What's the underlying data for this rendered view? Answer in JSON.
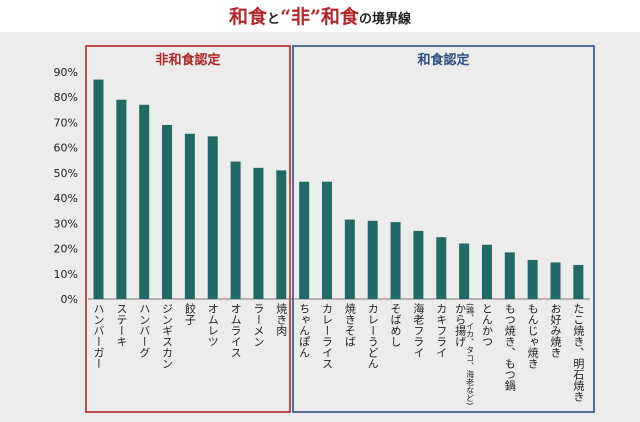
{
  "title": {
    "part1": "和食",
    "part2": "と",
    "part3": "“非”",
    "part4": "和食",
    "part5": "の境界線"
  },
  "groups": [
    {
      "label": "非和食認定",
      "color": "#b3262a",
      "from": 0,
      "to": 7
    },
    {
      "label": "和食認定",
      "color": "#2f4f7f",
      "from": 8,
      "to": 20
    }
  ],
  "colors": {
    "bar": "#1f6b63",
    "panel": "#ececec"
  },
  "chart_data": {
    "type": "bar",
    "title": "和食と“非”和食の境界線",
    "xlabel": "",
    "ylabel": "",
    "ylim": [
      0,
      90
    ],
    "yticks": [
      "0%",
      "10%",
      "20%",
      "30%",
      "40%",
      "50%",
      "60%",
      "70%",
      "80%",
      "90%"
    ],
    "grid": false,
    "categories": [
      "ハンバーガー",
      "ステーキ",
      "ハンバーグ",
      "ジンギスカン",
      "餃子",
      "オムレツ",
      "オムライス",
      "ラーメン",
      "焼き肉",
      "ちゃんぽん",
      "カレーライス",
      "焼きそば",
      "カレーうどん",
      "そばめし",
      "海老フライ",
      "カキフライ",
      "から揚げ",
      "とんかつ",
      "もつ焼き、もつ鍋",
      "もんじゃ焼き",
      "お好み焼き",
      "たこ焼き、明石焼き"
    ],
    "category_notes": {
      "から揚げ": "(鶏、イカ、タコ、海老など)"
    },
    "values": [
      87,
      79,
      77,
      69,
      65.5,
      64.5,
      54.5,
      52,
      51,
      46.5,
      46.5,
      31.5,
      31,
      30.5,
      27,
      24.5,
      22,
      21.5,
      18.5,
      15.5,
      14.5,
      13.5
    ]
  }
}
